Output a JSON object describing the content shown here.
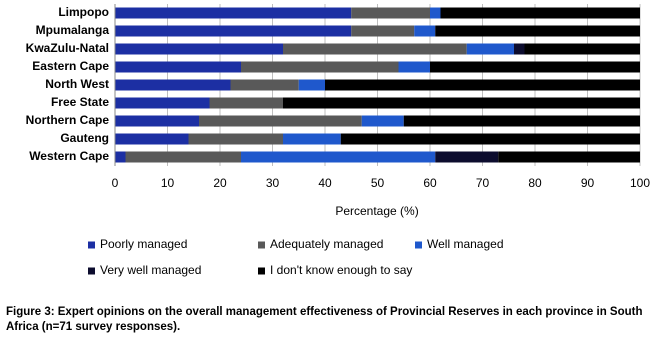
{
  "chart_data": {
    "type": "stacked-barh",
    "categories": [
      "Limpopo",
      "Mpumalanga",
      "KwaZulu-Natal",
      "Eastern Cape",
      "North West",
      "Free State",
      "Northern Cape",
      "Gauteng",
      "Western Cape"
    ],
    "series": [
      {
        "name": "Poorly managed",
        "color": "#1c2fa3",
        "values": [
          45,
          45,
          32,
          24,
          22,
          18,
          16,
          14,
          2
        ]
      },
      {
        "name": "Adequately managed",
        "color": "#595959",
        "values": [
          15,
          12,
          35,
          30,
          13,
          14,
          31,
          18,
          22
        ]
      },
      {
        "name": "Well managed",
        "color": "#1f58cc",
        "values": [
          2,
          4,
          9,
          6,
          5,
          0,
          8,
          11,
          37
        ]
      },
      {
        "name": "Very well managed",
        "color": "#0c0c2e",
        "values": [
          0,
          0,
          2,
          0,
          0,
          0,
          0,
          0,
          12
        ]
      },
      {
        "name": "I don't know enough to say",
        "color": "#000000",
        "values": [
          38,
          39,
          22,
          40,
          60,
          68,
          45,
          57,
          27
        ]
      }
    ],
    "xlim": [
      0,
      100
    ],
    "xticks": [
      0,
      10,
      20,
      30,
      40,
      50,
      60,
      70,
      80,
      90,
      100
    ],
    "grid": true,
    "xlabel": "Percentage (%)",
    "caption": "Figure 3: Expert opinions on the overall management effectiveness of Provincial Reserves in each province in South Africa (n=71 survey responses)."
  }
}
